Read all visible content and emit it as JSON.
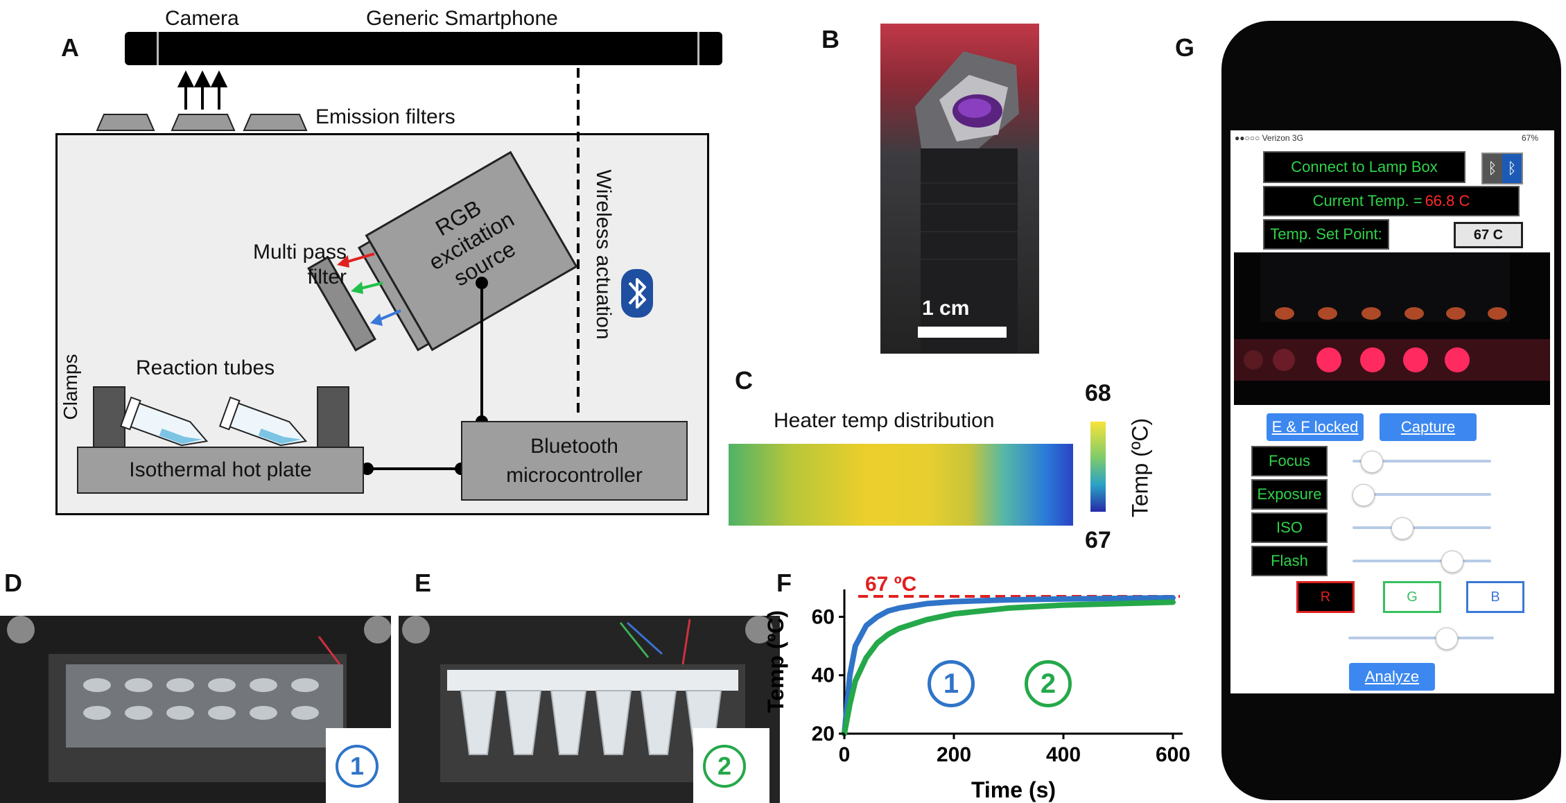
{
  "panel_labels": {
    "a": "A",
    "b": "B",
    "c": "C",
    "d": "D",
    "e": "E",
    "f": "F",
    "g": "G"
  },
  "panel_a": {
    "camera": "Camera",
    "smartphone": "Generic Smartphone",
    "emission_filters": "Emission filters",
    "rgb_source_line1": "RGB",
    "rgb_source_line2": "excitation",
    "rgb_source_line3": "source",
    "multipass_line1": "Multi pass",
    "multipass_line2": "filter",
    "wireless": "Wireless actuation",
    "clamps": "Clamps",
    "reaction_tubes": "Reaction tubes",
    "hot_plate": "Isothermal hot plate",
    "mcu_line1": "Bluetooth",
    "mcu_line2": "microcontroller",
    "colors": {
      "red": "#e02020",
      "green": "#22c04a",
      "blue": "#3a78d8",
      "bluetooth": "#1f4fa0"
    }
  },
  "panel_b": {
    "scale_label": "1 cm"
  },
  "panel_c": {
    "title": "Heater temp distribution",
    "max": "68",
    "min": "67",
    "colorbar_label": "Temp (ºC)"
  },
  "panel_d": {
    "badge": "1",
    "badge_color": "#2f74c8"
  },
  "panel_e": {
    "badge": "2",
    "badge_color": "#25a84a"
  },
  "chart_data": {
    "type": "line",
    "title": "",
    "xlabel": "Time (s)",
    "ylabel": "Temp (ºC)",
    "xlim": [
      0,
      600
    ],
    "ylim": [
      20,
      67
    ],
    "x_ticks": [
      "0",
      "200",
      "400",
      "600"
    ],
    "y_ticks": [
      "20",
      "40",
      "60"
    ],
    "reference_line": {
      "value": 67,
      "label": "67 ºC",
      "color": "#e02020"
    },
    "series": [
      {
        "name": "1",
        "color": "#2f74c8",
        "x": [
          0,
          10,
          20,
          40,
          60,
          80,
          100,
          150,
          200,
          300,
          400,
          500,
          600
        ],
        "y": [
          20,
          40,
          50,
          57,
          60,
          62,
          63,
          64.5,
          65.2,
          65.8,
          66.1,
          66.3,
          66.5
        ]
      },
      {
        "name": "2",
        "color": "#25a84a",
        "x": [
          0,
          10,
          20,
          40,
          60,
          80,
          100,
          150,
          200,
          300,
          400,
          500,
          600
        ],
        "y": [
          20,
          30,
          38,
          46,
          51,
          54,
          56,
          59,
          61,
          63,
          64,
          64.5,
          65
        ]
      }
    ]
  },
  "panel_g": {
    "status_carrier": "●●○○○ Verizon  3G",
    "status_battery": "67%",
    "connect_label": "Connect to Lamp Box",
    "current_temp_label": "Current Temp. = ",
    "current_temp_value": "66.8 C",
    "set_point_label": "Temp. Set Point:",
    "set_point_value": "67 C",
    "ef_locked": "E & F locked",
    "capture": "Capture",
    "sliders": [
      {
        "label": "Focus",
        "value": 0.07
      },
      {
        "label": "Exposure",
        "value": 0.0
      },
      {
        "label": "ISO",
        "value": 0.33
      },
      {
        "label": "Flash",
        "value": 0.75
      }
    ],
    "rgb": {
      "r": "R",
      "g": "G",
      "b": "B"
    },
    "channel_slider_value": 0.7,
    "analyze": "Analyze"
  }
}
